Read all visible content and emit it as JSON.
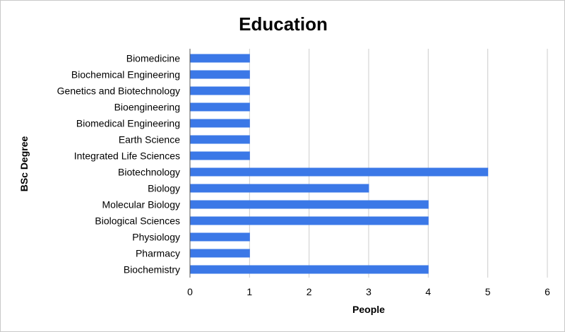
{
  "chart_data": {
    "type": "bar",
    "orientation": "horizontal",
    "title": "Education",
    "xlabel": "People",
    "ylabel": "BSc Degree",
    "categories": [
      "Biomedicine",
      "Biochemical Engineering",
      "Genetics and Biotechnology",
      "Bioengineering",
      "Biomedical Engineering",
      "Earth Science",
      "Integrated Life Sciences",
      "Biotechnology",
      "Biology",
      "Molecular Biology",
      "Biological Sciences",
      "Physiology",
      "Pharmacy",
      "Biochemistry"
    ],
    "values": [
      1,
      1,
      1,
      1,
      1,
      1,
      1,
      5,
      3,
      4,
      4,
      1,
      1,
      4
    ],
    "xlim": [
      0,
      6
    ],
    "xticks": [
      "0",
      "1",
      "2",
      "3",
      "4",
      "5",
      "6"
    ],
    "grid": "vertical",
    "legend": "none",
    "bar_color": "#3b78e7",
    "grid_color": "#cccccc"
  }
}
